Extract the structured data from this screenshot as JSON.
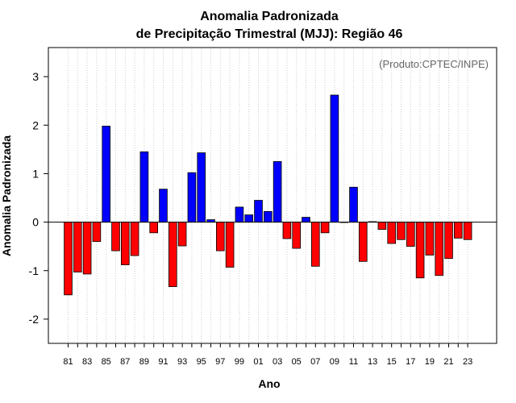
{
  "chart_data": {
    "type": "bar",
    "title": "Anomalia Padronizada",
    "subtitle": "de Precipitação Trimestral (MJJ): Região 46",
    "xlabel": "Ano",
    "ylabel": "Anomalia Padronizada",
    "annotation": "(Produto:CPTEC/INPE)",
    "ylim": [
      -2.5,
      3.6
    ],
    "yticks": [
      -2,
      -1,
      0,
      1,
      2,
      3
    ],
    "grid": "vertical dotted",
    "colors": {
      "positive": "#0000ff",
      "negative": "#ff0000",
      "grid": "#cccccc"
    },
    "x": [
      "81",
      "82",
      "83",
      "84",
      "85",
      "86",
      "87",
      "88",
      "89",
      "90",
      "91",
      "92",
      "93",
      "94",
      "95",
      "96",
      "97",
      "98",
      "99",
      "00",
      "01",
      "02",
      "03",
      "04",
      "05",
      "06",
      "07",
      "08",
      "09",
      "10",
      "11",
      "12",
      "13",
      "14",
      "15",
      "16",
      "17",
      "18",
      "19",
      "20",
      "21",
      "22",
      "23"
    ],
    "xtick_labels": [
      "81",
      "83",
      "85",
      "87",
      "89",
      "91",
      "93",
      "95",
      "97",
      "99",
      "01",
      "03",
      "05",
      "07",
      "09",
      "11",
      "13",
      "15",
      "17",
      "19",
      "21",
      "23"
    ],
    "values": [
      -1.5,
      -1.03,
      -1.07,
      -0.4,
      1.98,
      -0.59,
      -0.88,
      -0.69,
      1.45,
      -0.22,
      0.68,
      -1.33,
      -0.49,
      1.02,
      1.43,
      0.05,
      -0.59,
      -0.93,
      0.31,
      0.15,
      0.45,
      0.22,
      1.25,
      -0.34,
      -0.54,
      0.1,
      -0.91,
      -0.22,
      2.62,
      0,
      0.72,
      -0.81,
      0.01,
      -0.15,
      -0.44,
      -0.36,
      -0.5,
      -1.15,
      -0.68,
      -1.1,
      -0.75,
      -0.33,
      -0.36
    ]
  }
}
